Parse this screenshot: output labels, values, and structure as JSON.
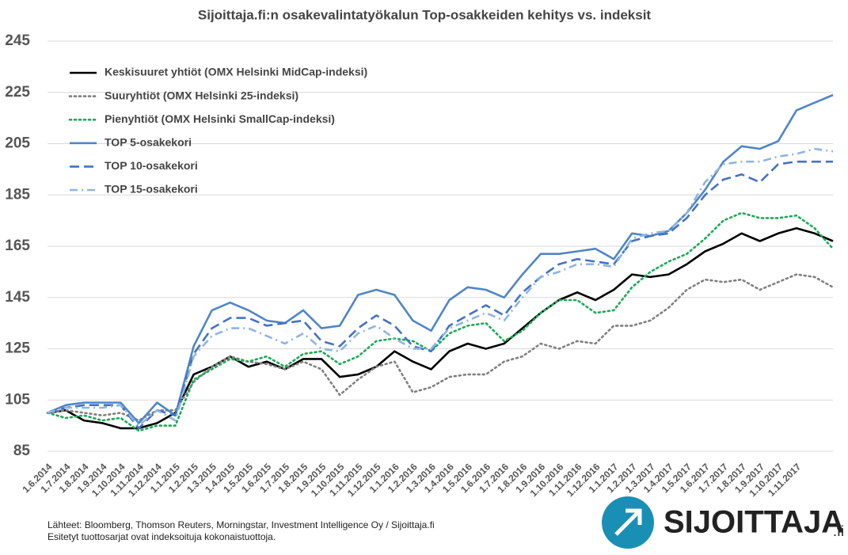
{
  "chart_data": {
    "type": "line",
    "title": "Sijoittaja.fi:n osakevalintatyökalun Top-osakkeiden kehitys vs. indeksit",
    "categories": [
      "1.6.2014",
      "1.7.2014",
      "1.8.2014",
      "1.9.2014",
      "1.10.2014",
      "1.11.2014",
      "1.12.2014",
      "1.1.2015",
      "1.2.2015",
      "1.3.2015",
      "1.4.2015",
      "1.5.2015",
      "1.6.2015",
      "1.7.2015",
      "1.8.2015",
      "1.9.2015",
      "1.10.2015",
      "1.11.2015",
      "1.12.2015",
      "1.1.2016",
      "1.2.2016",
      "1.3.2016",
      "1.4.2016",
      "1.5.2016",
      "1.6.2016",
      "1.7.2016",
      "1.8.2016",
      "1.9.2016",
      "1.10.2016",
      "1.11.2016",
      "1.12.2016",
      "1.1.2017",
      "1.2.2017",
      "1.3.2017",
      "1.4.2017",
      "1.5.2017",
      "1.6.2017",
      "1.7.2017",
      "1.8.2017",
      "1.9.2017",
      "1.10.2017",
      "1.11.2017",
      null,
      null
    ],
    "series": [
      {
        "name": "Keskisuuret yhtiöt (OMX Helsinki MidCap-indeksi)",
        "color": "#000000",
        "style": "solid",
        "width": 2.6,
        "values": [
          100,
          101,
          97,
          96,
          94,
          94,
          96,
          100,
          115,
          118,
          122,
          118,
          120,
          117,
          121,
          121,
          114,
          115,
          118,
          124,
          120,
          117,
          124,
          127,
          125,
          127,
          133,
          139,
          144,
          147,
          144,
          148,
          154,
          153,
          154,
          158,
          163,
          166,
          170,
          167,
          170,
          172,
          170,
          167
        ]
      },
      {
        "name": "Suuryhtiöt (OMX Helsinki 25-indeksi)",
        "color": "#808080",
        "style": "dotted",
        "width": 2.6,
        "values": [
          100,
          101,
          100,
          99,
          100,
          97,
          101,
          101,
          112,
          118,
          122,
          120,
          119,
          117,
          120,
          117,
          107,
          113,
          118,
          120,
          108,
          110,
          114,
          115,
          115,
          120,
          122,
          127,
          125,
          128,
          127,
          134,
          134,
          136,
          141,
          148,
          152,
          151,
          152,
          148,
          151,
          154,
          153,
          149
        ]
      },
      {
        "name": "Pienyhtiöt (OMX Helsinki SmallCap-indeksi)",
        "color": "#1aaa55",
        "style": "dotted",
        "width": 2.6,
        "values": [
          100,
          98,
          99,
          97,
          98,
          93,
          95,
          95,
          113,
          117,
          121,
          120,
          122,
          118,
          123,
          124,
          119,
          122,
          128,
          129,
          128,
          124,
          131,
          134,
          135,
          128,
          132,
          139,
          144,
          144,
          139,
          140,
          149,
          155,
          159,
          162,
          168,
          175,
          178,
          176,
          176,
          177,
          172,
          164
        ]
      },
      {
        "name": "TOP 5-osakekori",
        "color": "#4f86c6",
        "style": "solid",
        "width": 2.6,
        "values": [
          100,
          103,
          104,
          104,
          104,
          96,
          104,
          99,
          126,
          140,
          143,
          140,
          136,
          135,
          140,
          133,
          134,
          146,
          148,
          146,
          136,
          132,
          144,
          149,
          148,
          145,
          154,
          162,
          162,
          163,
          164,
          160,
          170,
          169,
          171,
          178,
          187,
          198,
          204,
          203,
          206,
          218,
          221,
          224
        ]
      },
      {
        "name": "TOP 10-osakekori",
        "color": "#4472c4",
        "style": "dashed",
        "width": 2.6,
        "values": [
          100,
          102,
          103,
          103,
          103,
          94,
          101,
          99,
          123,
          133,
          137,
          137,
          134,
          135,
          136,
          128,
          126,
          133,
          138,
          134,
          126,
          124,
          134,
          138,
          142,
          138,
          147,
          153,
          158,
          160,
          159,
          158,
          167,
          169,
          170,
          176,
          185,
          191,
          193,
          190,
          197,
          198,
          198,
          198
        ]
      },
      {
        "name": "TOP 15-osakekori",
        "color": "#8fb4e3",
        "style": "dashdot",
        "width": 2.6,
        "values": [
          100,
          102,
          102,
          102,
          103,
          95,
          101,
          97,
          122,
          130,
          133,
          133,
          130,
          127,
          131,
          125,
          124,
          131,
          134,
          129,
          125,
          125,
          133,
          136,
          139,
          136,
          145,
          153,
          155,
          158,
          158,
          157,
          168,
          170,
          171,
          178,
          190,
          197,
          198,
          198,
          200,
          201,
          203,
          202
        ]
      }
    ],
    "ylim": [
      85,
      245
    ],
    "yticks": [
      85,
      105,
      125,
      145,
      165,
      185,
      205,
      225,
      245
    ],
    "grid": true,
    "legend": "top-left",
    "notes": [
      "Lähteet: Bloomberg, Thomson Reuters, Morningstar, Investment Intelligence Oy / Sijoittaja.fi",
      "Esitetyt tuottosarjat ovat indeksoituja kokonaistuottoja."
    ],
    "logo": {
      "name": "SIJOITTAJA",
      "suffix": ".fi"
    }
  }
}
